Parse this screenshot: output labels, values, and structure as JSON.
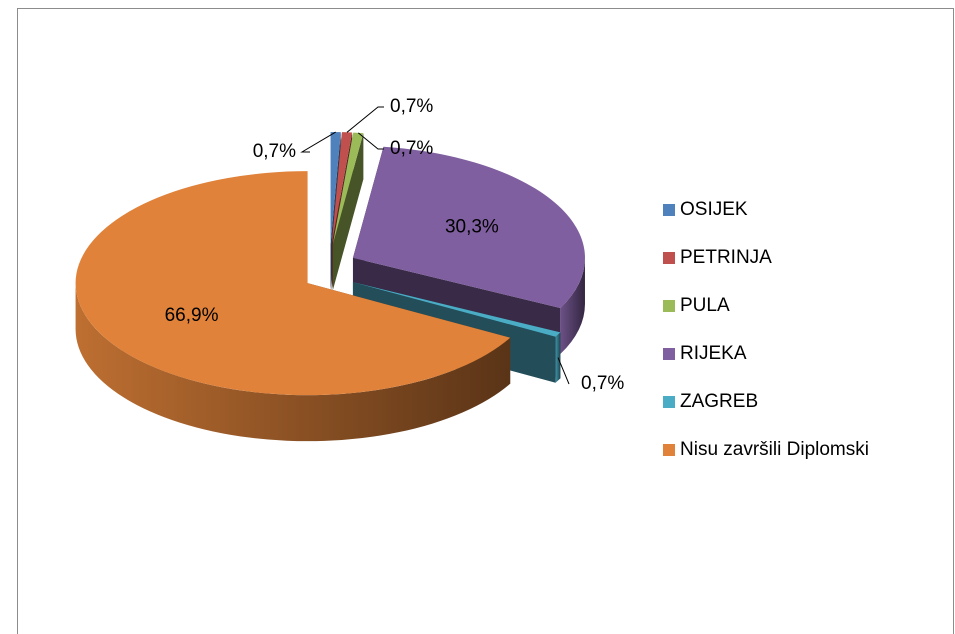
{
  "chart_data": {
    "type": "pie",
    "categories": [
      "OSIJEK",
      "PETRINJA",
      "PULA",
      "RIJEKA",
      "ZAGREB",
      "Nisu završili Diplomski"
    ],
    "values": [
      0.7,
      0.7,
      0.7,
      30.3,
      0.7,
      66.9
    ],
    "value_labels": [
      "0,7%",
      "0,7%",
      "0,7%",
      "30,3%",
      "0,7%",
      "66,9%"
    ],
    "colors": [
      "#4f81bd",
      "#c0504d",
      "#9bbb59",
      "#7f5f9f",
      "#4bacc6",
      "#e0823a"
    ],
    "legend": "right"
  }
}
